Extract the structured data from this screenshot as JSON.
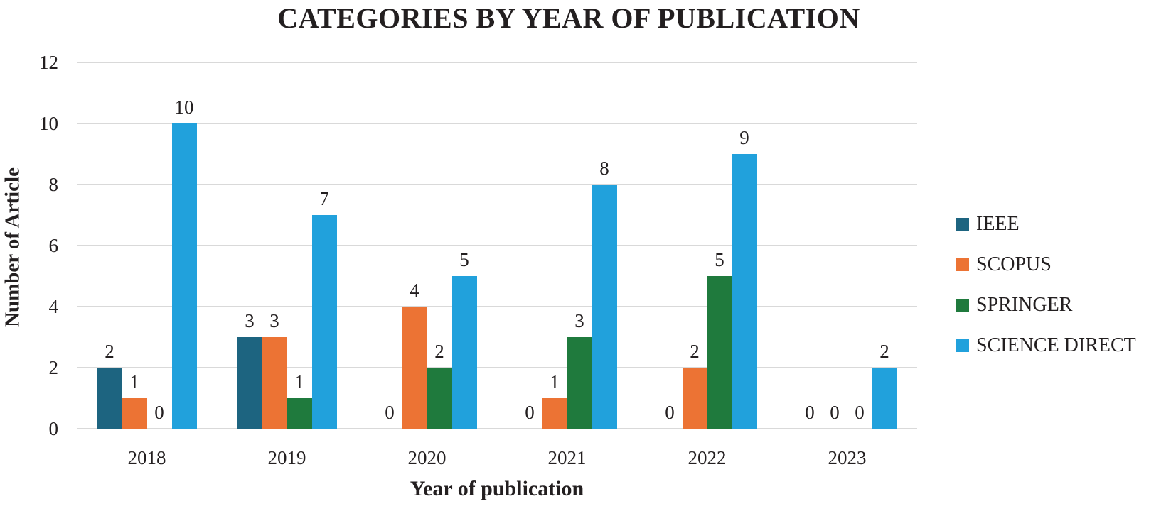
{
  "chart_data": {
    "type": "bar",
    "title": "CATEGORIES BY YEAR OF PUBLICATION",
    "xlabel": "Year of publication",
    "ylabel": "Number of Article",
    "categories": [
      "2018",
      "2019",
      "2020",
      "2021",
      "2022",
      "2023"
    ],
    "series": [
      {
        "name": "IEEE",
        "color": "#1d6480",
        "values": [
          2,
          3,
          0,
          0,
          0,
          0
        ]
      },
      {
        "name": "SCOPUS",
        "color": "#ec7334",
        "values": [
          1,
          3,
          4,
          1,
          2,
          0
        ]
      },
      {
        "name": "SPRINGER",
        "color": "#1f7a3d",
        "values": [
          0,
          1,
          2,
          3,
          5,
          0
        ]
      },
      {
        "name": "SCIENCE DIRECT",
        "color": "#21a1dc",
        "values": [
          10,
          7,
          5,
          8,
          9,
          2
        ]
      }
    ],
    "ylim": [
      0,
      12
    ],
    "yticks": [
      0,
      2,
      4,
      6,
      8,
      10,
      12
    ],
    "grid": true,
    "data_labels": true,
    "legend_position": "right"
  },
  "colors": {
    "grid": "#d9d9d9",
    "text": "#231f20",
    "background": "#ffffff"
  }
}
